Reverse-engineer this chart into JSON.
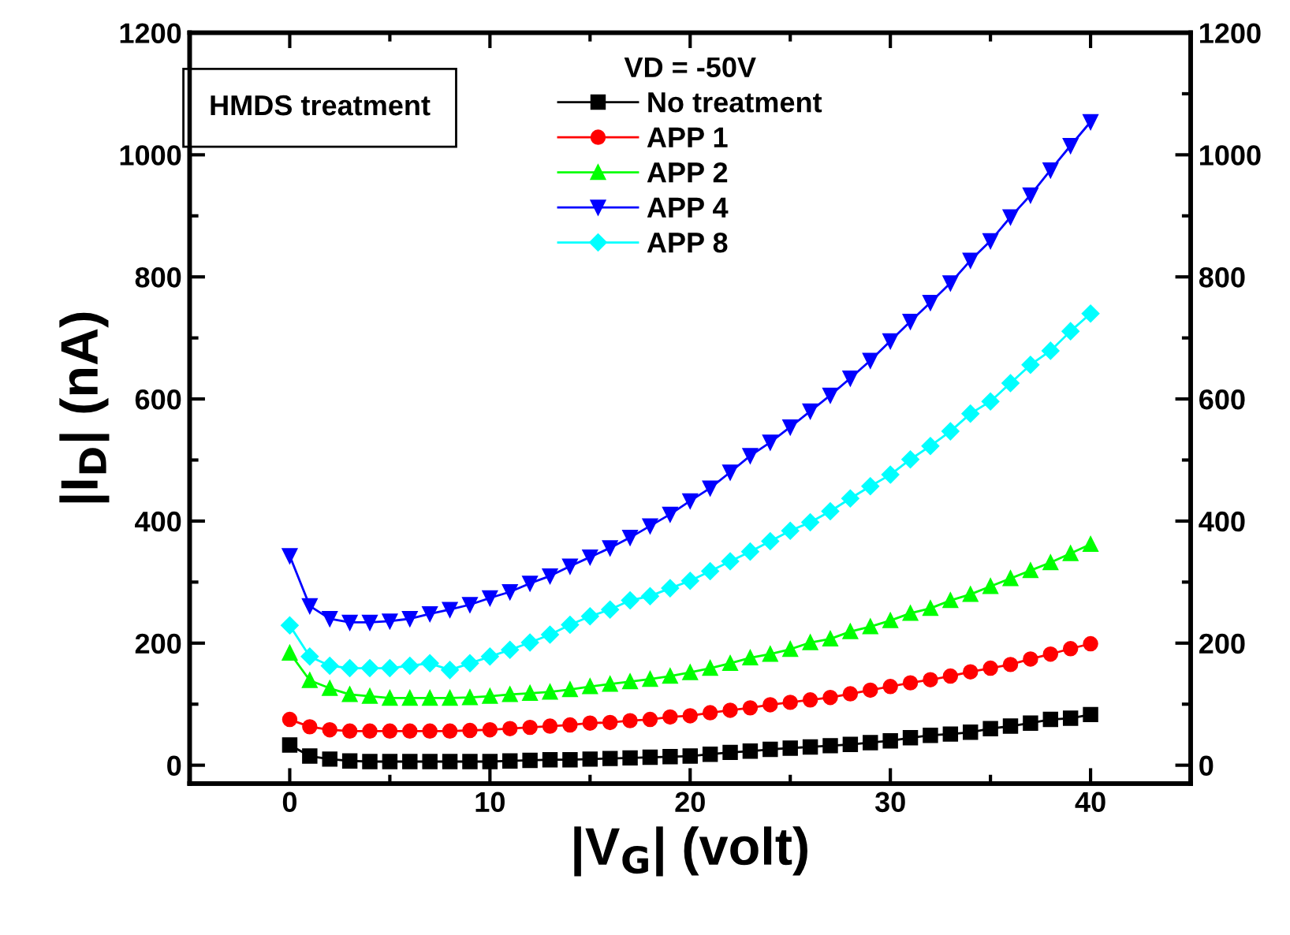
{
  "chart_data": {
    "type": "line",
    "xlabel": "|V$_{G}$| (volt)",
    "ylabel": "|I$_{D}$| (nA)",
    "legend_title": "VD = -50V",
    "legend": "top",
    "annotations": [
      "HMDS treatment"
    ],
    "x": [
      0,
      1,
      2,
      3,
      4,
      5,
      6,
      7,
      8,
      9,
      10,
      11,
      12,
      13,
      14,
      15,
      16,
      17,
      18,
      19,
      20,
      21,
      22,
      23,
      24,
      25,
      26,
      27,
      28,
      29,
      30,
      31,
      32,
      33,
      34,
      35,
      36,
      37,
      38,
      39,
      40
    ],
    "series": [
      {
        "name": "No treatment",
        "color": "#000000",
        "marker": "square",
        "values": [
          33,
          15,
          10,
          7,
          6,
          6,
          6,
          6,
          6,
          6,
          6,
          7,
          8,
          9,
          9,
          10,
          11,
          12,
          13,
          14,
          15,
          18,
          21,
          23,
          26,
          28,
          30,
          32,
          34,
          37,
          40,
          45,
          49,
          51,
          54,
          60,
          64,
          69,
          75,
          77,
          83
        ]
      },
      {
        "name": "APP 1",
        "color": "#ff0000",
        "marker": "circle",
        "values": [
          75,
          63,
          58,
          56,
          56,
          56,
          56,
          56,
          56,
          57,
          58,
          60,
          62,
          64,
          66,
          69,
          70,
          73,
          75,
          79,
          81,
          86,
          90,
          94,
          99,
          103,
          107,
          111,
          117,
          123,
          129,
          135,
          140,
          146,
          153,
          159,
          165,
          174,
          182,
          191,
          199
        ]
      },
      {
        "name": "APP 2",
        "color": "#00ff00",
        "marker": "triangle",
        "values": [
          184,
          139,
          126,
          116,
          113,
          110,
          110,
          110,
          110,
          111,
          113,
          116,
          118,
          120,
          124,
          129,
          133,
          137,
          141,
          146,
          152,
          159,
          167,
          176,
          182,
          190,
          201,
          207,
          219,
          227,
          237,
          249,
          257,
          270,
          280,
          293,
          306,
          319,
          332,
          347,
          362
        ]
      },
      {
        "name": "APP 4",
        "color": "#0000ff",
        "marker": "triangle_down",
        "values": [
          343,
          261,
          240,
          234,
          234,
          236,
          240,
          248,
          255,
          263,
          274,
          284,
          298,
          310,
          326,
          341,
          356,
          373,
          392,
          411,
          433,
          454,
          480,
          507,
          529,
          554,
          580,
          606,
          634,
          663,
          695,
          727,
          758,
          790,
          827,
          859,
          898,
          934,
          975,
          1015,
          1054
        ]
      },
      {
        "name": "APP 8",
        "color": "#00ffff",
        "marker": "diamond",
        "values": [
          229,
          178,
          163,
          159,
          159,
          159,
          163,
          167,
          156,
          167,
          178,
          189,
          201,
          214,
          230,
          244,
          255,
          270,
          277,
          290,
          302,
          318,
          334,
          350,
          367,
          384,
          398,
          416,
          437,
          457,
          476,
          501,
          523,
          547,
          576,
          596,
          626,
          656,
          679,
          711,
          740
        ]
      }
    ],
    "xlim": [
      -5,
      45
    ],
    "xticks": [
      0,
      10,
      20,
      30,
      40
    ],
    "ylim": [
      -30,
      1200
    ],
    "yticks": [
      0,
      200,
      400,
      600,
      800,
      1000,
      1200
    ],
    "y2lim": [
      -30,
      1200
    ],
    "y2ticks": [
      0,
      200,
      400,
      600,
      800,
      1000,
      1200
    ],
    "grid": false,
    "line_style": "solid"
  }
}
